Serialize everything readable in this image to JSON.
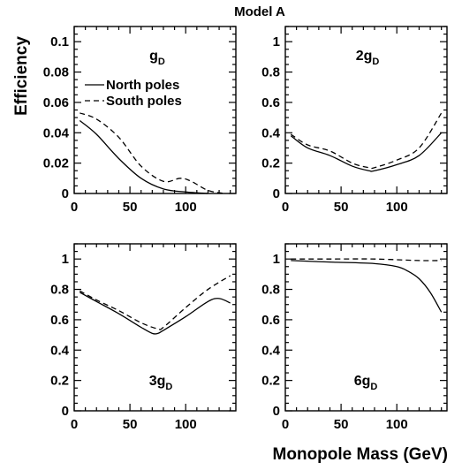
{
  "figure": {
    "title": "Model A",
    "ylabel": "Efficiency",
    "xlabel": "Monopole Mass (GeV)"
  },
  "chart_data": [
    {
      "type": "line",
      "panel_label": {
        "main": "g",
        "sub": "D"
      },
      "xlim": [
        0,
        145
      ],
      "ylim": [
        0,
        0.11
      ],
      "x_ticks": [
        0,
        50,
        100
      ],
      "x_tick_labels": [
        "0",
        "50",
        "100"
      ],
      "y_ticks": [
        0,
        0.02,
        0.04,
        0.06,
        0.08,
        0.1
      ],
      "y_tick_labels": [
        "0",
        "0.02",
        "0.04",
        "0.06",
        "0.08",
        "0.1"
      ],
      "legend": {
        "placement": "top-left",
        "entries": [
          {
            "label": "North poles",
            "style": "solid"
          },
          {
            "label": "South poles",
            "style": "dashed"
          }
        ]
      },
      "series": [
        {
          "name": "North poles",
          "style": "solid",
          "x": [
            5,
            20,
            40,
            60,
            80,
            100,
            120
          ],
          "y": [
            0.048,
            0.039,
            0.023,
            0.01,
            0.003,
            0.001,
            0.0
          ]
        },
        {
          "name": "South poles",
          "style": "dashed",
          "x": [
            5,
            20,
            40,
            60,
            80,
            95,
            105,
            120,
            135
          ],
          "y": [
            0.053,
            0.049,
            0.037,
            0.018,
            0.008,
            0.01,
            0.008,
            0.002,
            0.0
          ]
        }
      ]
    },
    {
      "type": "line",
      "panel_label": {
        "main": "2g",
        "sub": "D"
      },
      "xlim": [
        0,
        145
      ],
      "ylim": [
        0,
        1.1
      ],
      "x_ticks": [
        0,
        50,
        100
      ],
      "x_tick_labels": [
        "0",
        "50",
        "100"
      ],
      "y_ticks": [
        0,
        0.2,
        0.4,
        0.6,
        0.8,
        1
      ],
      "y_tick_labels": [
        "0",
        "0.2",
        "0.4",
        "0.6",
        "0.8",
        "1"
      ],
      "series": [
        {
          "name": "North poles",
          "style": "solid",
          "x": [
            5,
            20,
            40,
            60,
            75,
            80,
            100,
            120,
            140
          ],
          "y": [
            0.38,
            0.3,
            0.25,
            0.18,
            0.15,
            0.15,
            0.19,
            0.25,
            0.4
          ]
        },
        {
          "name": "South poles",
          "style": "dashed",
          "x": [
            5,
            20,
            40,
            60,
            75,
            80,
            100,
            120,
            140
          ],
          "y": [
            0.39,
            0.32,
            0.28,
            0.2,
            0.17,
            0.17,
            0.22,
            0.3,
            0.53
          ]
        }
      ]
    },
    {
      "type": "line",
      "panel_label": {
        "main": "3g",
        "sub": "D"
      },
      "xlim": [
        0,
        145
      ],
      "ylim": [
        0,
        1.1
      ],
      "x_ticks": [
        0,
        50,
        100
      ],
      "x_tick_labels": [
        "0",
        "50",
        "100"
      ],
      "y_ticks": [
        0,
        0.2,
        0.4,
        0.6,
        0.8,
        1
      ],
      "y_tick_labels": [
        "0",
        "0.2",
        "0.4",
        "0.6",
        "0.8",
        "1"
      ],
      "series": [
        {
          "name": "North poles",
          "style": "solid",
          "x": [
            5,
            20,
            40,
            60,
            70,
            75,
            80,
            100,
            120,
            130,
            140
          ],
          "y": [
            0.78,
            0.72,
            0.64,
            0.55,
            0.51,
            0.51,
            0.53,
            0.62,
            0.72,
            0.74,
            0.71
          ]
        },
        {
          "name": "South poles",
          "style": "dashed",
          "x": [
            5,
            20,
            40,
            60,
            75,
            80,
            100,
            120,
            140
          ],
          "y": [
            0.79,
            0.73,
            0.66,
            0.58,
            0.54,
            0.55,
            0.68,
            0.8,
            0.89
          ]
        }
      ]
    },
    {
      "type": "line",
      "panel_label": {
        "main": "6g",
        "sub": "D"
      },
      "xlim": [
        0,
        145
      ],
      "ylim": [
        0,
        1.1
      ],
      "x_ticks": [
        0,
        50,
        100
      ],
      "x_tick_labels": [
        "0",
        "50",
        "100"
      ],
      "y_ticks": [
        0,
        0.2,
        0.4,
        0.6,
        0.8,
        1
      ],
      "y_tick_labels": [
        "0",
        "0.2",
        "0.4",
        "0.6",
        "0.8",
        "1"
      ],
      "series": [
        {
          "name": "North poles",
          "style": "solid",
          "x": [
            5,
            40,
            80,
            100,
            110,
            120,
            130,
            140
          ],
          "y": [
            0.99,
            0.98,
            0.97,
            0.95,
            0.92,
            0.87,
            0.78,
            0.65
          ]
        },
        {
          "name": "South poles",
          "style": "dashed",
          "x": [
            5,
            40,
            80,
            120,
            140
          ],
          "y": [
            1.0,
            1.0,
            1.0,
            0.99,
            0.99
          ]
        }
      ]
    }
  ]
}
